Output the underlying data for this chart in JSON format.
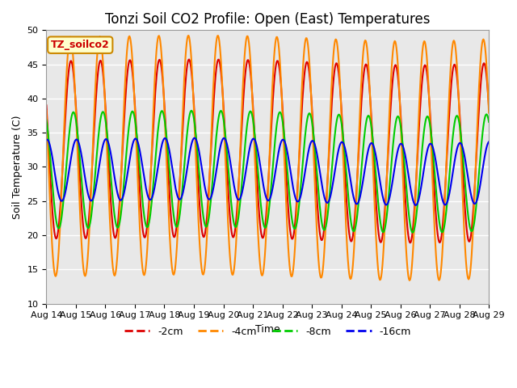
{
  "title": "Tonzi Soil CO2 Profile: Open (East) Temperatures",
  "xlabel": "Time",
  "ylabel": "Soil Temperature (C)",
  "ylim": [
    10,
    50
  ],
  "xlim_days": [
    0,
    15
  ],
  "x_tick_labels": [
    "Aug 14",
    "Aug 15",
    "Aug 16",
    "Aug 17",
    "Aug 18",
    "Aug 19",
    "Aug 20",
    "Aug 21",
    "Aug 22",
    "Aug 23",
    "Aug 24",
    "Aug 25",
    "Aug 26",
    "Aug 27",
    "Aug 28",
    "Aug 29"
  ],
  "series": [
    {
      "label": "-2cm",
      "color": "#dd0000",
      "lw": 1.5,
      "amplitude": 13.0,
      "mean": 32.5,
      "phase_hours": 14.0
    },
    {
      "label": "-4cm",
      "color": "#ff8800",
      "lw": 1.5,
      "amplitude": 17.5,
      "mean": 31.5,
      "phase_hours": 13.5
    },
    {
      "label": "-8cm",
      "color": "#00cc00",
      "lw": 1.5,
      "amplitude": 8.5,
      "mean": 29.5,
      "phase_hours": 16.0
    },
    {
      "label": "-16cm",
      "color": "#0000ee",
      "lw": 1.5,
      "amplitude": 4.5,
      "mean": 29.5,
      "phase_hours": 18.5
    }
  ],
  "bg_color": "#e8e8e8",
  "fig_bg": "#ffffff",
  "grid_color": "#ffffff",
  "annotation_text": "TZ_soilco2",
  "annotation_bg": "#ffffcc",
  "annotation_edge": "#cc8800",
  "title_fontsize": 12,
  "axis_fontsize": 9,
  "tick_fontsize": 8,
  "legend_fontsize": 9
}
